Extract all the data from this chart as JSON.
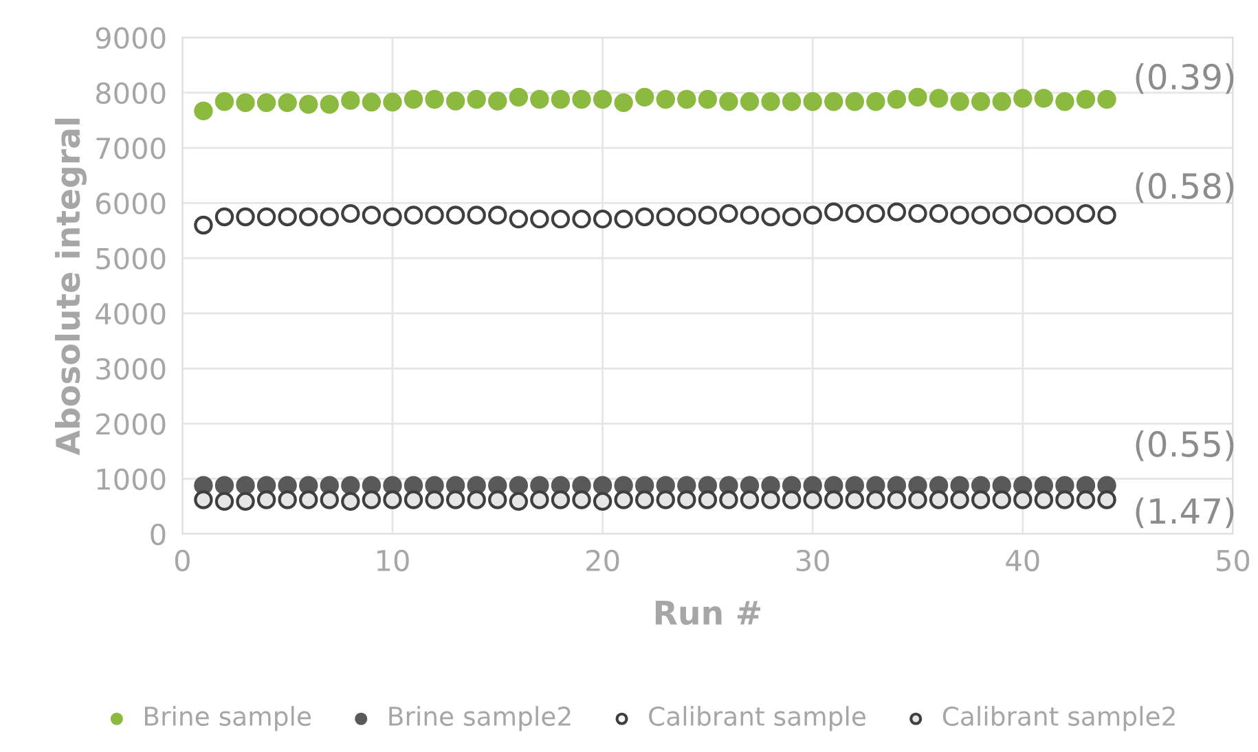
{
  "chart_data": {
    "type": "scatter",
    "xlabel": "Run #",
    "ylabel": "Abosolute integral",
    "xlim": [
      0,
      50
    ],
    "xticks": [
      0,
      10,
      20,
      30,
      40,
      50
    ],
    "ylim": [
      0,
      9000
    ],
    "yticks": [
      0,
      1000,
      2000,
      3000,
      4000,
      5000,
      6000,
      7000,
      8000,
      9000
    ],
    "grid": true,
    "legend": "bottom",
    "marker": "circle",
    "x": [
      1,
      2,
      3,
      4,
      5,
      6,
      7,
      8,
      9,
      10,
      11,
      12,
      13,
      14,
      15,
      16,
      17,
      18,
      19,
      20,
      21,
      22,
      23,
      24,
      25,
      26,
      27,
      28,
      29,
      30,
      31,
      32,
      33,
      34,
      35,
      36,
      37,
      38,
      39,
      40,
      41,
      42,
      43,
      44
    ],
    "series": [
      {
        "name": "Brine sample",
        "color": "#8cba41",
        "values": [
          7670,
          7840,
          7820,
          7820,
          7820,
          7790,
          7790,
          7860,
          7830,
          7830,
          7880,
          7880,
          7850,
          7880,
          7850,
          7920,
          7880,
          7880,
          7880,
          7880,
          7820,
          7920,
          7880,
          7880,
          7880,
          7840,
          7840,
          7840,
          7840,
          7840,
          7840,
          7840,
          7840,
          7880,
          7920,
          7900,
          7840,
          7840,
          7840,
          7900,
          7900,
          7840,
          7880,
          7880
        ]
      },
      {
        "name": "Brine sample2",
        "color": "#595959",
        "values": [
          880,
          880,
          880,
          880,
          880,
          880,
          880,
          880,
          880,
          880,
          880,
          880,
          880,
          880,
          880,
          880,
          880,
          880,
          880,
          880,
          880,
          880,
          880,
          880,
          880,
          880,
          880,
          880,
          880,
          880,
          880,
          880,
          880,
          880,
          880,
          880,
          880,
          880,
          880,
          880,
          880,
          880,
          880,
          880
        ]
      },
      {
        "name": "Calibrant sample",
        "color": "#ffffff",
        "values": [
          5600,
          5750,
          5750,
          5750,
          5750,
          5750,
          5750,
          5810,
          5780,
          5750,
          5780,
          5780,
          5780,
          5780,
          5780,
          5710,
          5710,
          5710,
          5710,
          5710,
          5710,
          5750,
          5750,
          5750,
          5780,
          5810,
          5780,
          5750,
          5750,
          5780,
          5840,
          5810,
          5810,
          5840,
          5810,
          5810,
          5780,
          5780,
          5780,
          5810,
          5780,
          5780,
          5810,
          5780
        ]
      },
      {
        "name": "Calibrant sample2",
        "color": "#e6e6e6",
        "values": [
          620,
          590,
          590,
          620,
          620,
          620,
          620,
          590,
          620,
          620,
          620,
          620,
          620,
          620,
          620,
          590,
          620,
          620,
          620,
          590,
          620,
          620,
          620,
          620,
          620,
          620,
          620,
          620,
          620,
          620,
          620,
          620,
          620,
          620,
          620,
          620,
          620,
          620,
          620,
          620,
          620,
          620,
          620,
          620
        ]
      }
    ],
    "annotations": [
      "(0.39)",
      "(0.58)",
      "(0.55)",
      "(1.47)"
    ]
  }
}
